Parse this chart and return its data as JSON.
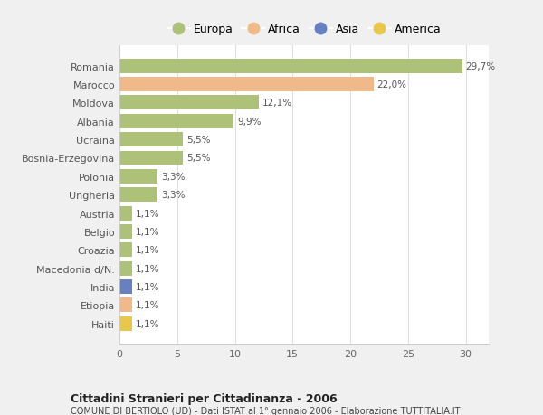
{
  "countries": [
    "Romania",
    "Marocco",
    "Moldova",
    "Albania",
    "Ucraina",
    "Bosnia-Erzegovina",
    "Polonia",
    "Ungheria",
    "Austria",
    "Belgio",
    "Croazia",
    "Macedonia d/N.",
    "India",
    "Etiopia",
    "Haiti"
  ],
  "values": [
    29.7,
    22.0,
    12.1,
    9.9,
    5.5,
    5.5,
    3.3,
    3.3,
    1.1,
    1.1,
    1.1,
    1.1,
    1.1,
    1.1,
    1.1
  ],
  "labels": [
    "29,7%",
    "22,0%",
    "12,1%",
    "9,9%",
    "5,5%",
    "5,5%",
    "3,3%",
    "3,3%",
    "1,1%",
    "1,1%",
    "1,1%",
    "1,1%",
    "1,1%",
    "1,1%",
    "1,1%"
  ],
  "continents": [
    "Europa",
    "Africa",
    "Europa",
    "Europa",
    "Europa",
    "Europa",
    "Europa",
    "Europa",
    "Europa",
    "Europa",
    "Europa",
    "Europa",
    "Asia",
    "Africa",
    "America"
  ],
  "colors": {
    "Europa": "#adc178",
    "Africa": "#f0b98a",
    "Asia": "#6680c0",
    "America": "#e8c84a"
  },
  "title_bold": "Cittadini Stranieri per Cittadinanza - 2006",
  "subtitle": "COMUNE DI BERTIOLO (UD) - Dati ISTAT al 1° gennaio 2006 - Elaborazione TUTTITALIA.IT",
  "xlim": [
    0,
    32
  ],
  "xticks": [
    0,
    5,
    10,
    15,
    20,
    25,
    30
  ],
  "background_color": "#f0f0f0",
  "plot_background": "#ffffff",
  "grid_color": "#e0e0e0"
}
